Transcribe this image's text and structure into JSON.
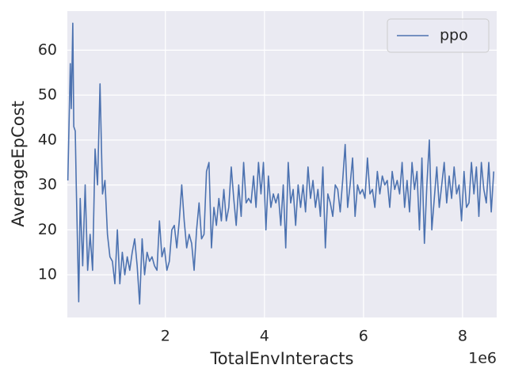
{
  "chart_data": {
    "type": "line",
    "x_label": "TotalEnvInteracts",
    "y_label": "AverageEpCost",
    "x_offset_label": "1e6",
    "xlim": [
      0.02,
      8.69
    ],
    "ylim": [
      0.5,
      68.7
    ],
    "xticks": [
      2,
      4,
      6,
      8
    ],
    "yticks": [
      10,
      20,
      30,
      40,
      50,
      60
    ],
    "grid": true,
    "legend": "upper right",
    "x": [
      0.03,
      0.08,
      0.1,
      0.13,
      0.15,
      0.18,
      0.2,
      0.25,
      0.28,
      0.33,
      0.38,
      0.43,
      0.48,
      0.53,
      0.58,
      0.63,
      0.68,
      0.73,
      0.78,
      0.83,
      0.88,
      0.93,
      0.98,
      1.03,
      1.08,
      1.13,
      1.18,
      1.23,
      1.28,
      1.33,
      1.38,
      1.43,
      1.48,
      1.53,
      1.58,
      1.63,
      1.68,
      1.73,
      1.78,
      1.83,
      1.88,
      1.93,
      1.98,
      2.03,
      2.08,
      2.13,
      2.18,
      2.23,
      2.28,
      2.33,
      2.38,
      2.43,
      2.48,
      2.53,
      2.58,
      2.63,
      2.68,
      2.73,
      2.78,
      2.83,
      2.88,
      2.93,
      2.98,
      3.03,
      3.08,
      3.13,
      3.18,
      3.23,
      3.28,
      3.33,
      3.38,
      3.43,
      3.48,
      3.53,
      3.58,
      3.63,
      3.68,
      3.73,
      3.78,
      3.83,
      3.88,
      3.93,
      3.98,
      4.03,
      4.08,
      4.13,
      4.18,
      4.23,
      4.28,
      4.33,
      4.38,
      4.43,
      4.48,
      4.53,
      4.58,
      4.63,
      4.68,
      4.73,
      4.78,
      4.83,
      4.88,
      4.93,
      4.98,
      5.03,
      5.08,
      5.13,
      5.18,
      5.23,
      5.28,
      5.33,
      5.38,
      5.43,
      5.48,
      5.53,
      5.58,
      5.63,
      5.68,
      5.73,
      5.78,
      5.83,
      5.88,
      5.93,
      5.98,
      6.03,
      6.08,
      6.13,
      6.18,
      6.23,
      6.28,
      6.33,
      6.38,
      6.43,
      6.48,
      6.53,
      6.58,
      6.63,
      6.68,
      6.73,
      6.78,
      6.83,
      6.88,
      6.93,
      6.98,
      7.03,
      7.08,
      7.13,
      7.18,
      7.23,
      7.28,
      7.33,
      7.38,
      7.43,
      7.48,
      7.53,
      7.58,
      7.63,
      7.68,
      7.73,
      7.78,
      7.83,
      7.88,
      7.93,
      7.98,
      8.03,
      8.08,
      8.13,
      8.18,
      8.23,
      8.28,
      8.33,
      8.38,
      8.43,
      8.48,
      8.53,
      8.58,
      8.63
    ],
    "series": [
      {
        "name": "ppo",
        "color": "#4c72b0",
        "values": [
          31,
          57,
          47,
          66,
          43,
          42,
          30,
          4,
          27,
          12,
          30,
          11,
          19,
          11,
          38,
          30,
          52.5,
          28,
          31,
          19,
          14,
          13,
          8,
          20,
          8,
          15,
          10,
          14,
          11,
          15,
          18,
          12,
          3.5,
          18,
          10,
          15,
          13,
          14,
          12,
          11,
          22,
          14,
          16,
          11,
          13,
          20,
          21,
          16,
          22,
          30,
          22,
          16,
          19,
          17,
          11,
          20,
          26,
          18,
          19,
          33,
          35,
          16,
          25,
          21,
          27,
          22,
          29,
          22,
          25,
          34,
          27,
          21,
          30,
          23,
          35,
          26,
          27,
          26,
          32,
          25,
          35,
          28,
          35,
          20,
          32,
          25,
          28,
          26,
          28,
          21,
          30,
          16,
          35,
          26,
          29,
          21,
          30,
          25,
          30,
          24,
          34,
          27,
          31,
          25,
          29,
          23,
          34,
          16,
          28,
          26,
          23,
          30,
          29,
          24,
          31,
          39,
          25,
          30,
          36,
          23,
          30,
          28,
          29,
          27,
          36,
          28,
          29,
          25,
          33,
          28,
          32,
          30,
          31,
          25,
          33,
          29,
          31,
          28,
          35,
          25,
          31,
          24,
          35,
          29,
          33,
          20,
          36,
          17,
          30,
          40,
          20,
          27,
          34,
          25,
          30,
          35,
          26,
          32,
          27,
          34,
          28,
          30,
          22,
          33,
          25,
          26,
          35,
          28,
          34,
          23,
          35,
          29,
          26,
          35,
          24,
          33
        ]
      }
    ]
  }
}
